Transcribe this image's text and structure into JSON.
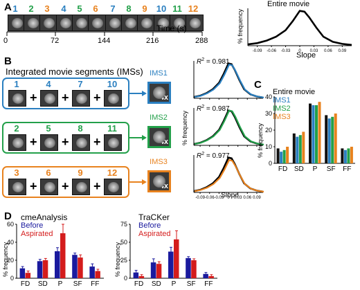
{
  "panel_a": {
    "label": "A",
    "segment_numbers": [
      "1",
      "2",
      "3",
      "4",
      "5",
      "6",
      "7",
      "8",
      "9",
      "10",
      "11",
      "12"
    ],
    "time_ticks": [
      "0",
      "72",
      "144",
      "216",
      "288"
    ],
    "time_label": "Time (s)",
    "inset_title": "Entire movie",
    "inset_ylabel": "% frequency",
    "inset_xlabel": "Slope",
    "inset_xticks": [
      "-0.09",
      "-0.06",
      "-0.03",
      "0",
      "0.03",
      "0.06",
      "0.09"
    ]
  },
  "panel_b": {
    "label": "B",
    "title": "Integrated movie segments (IMSs)",
    "plus": "+",
    "rows": [
      {
        "nums": [
          "1",
          "4",
          "7",
          "10"
        ],
        "ims": "IMS1",
        "r2": "0.981",
        "color": "#2a7fc0"
      },
      {
        "nums": [
          "2",
          "5",
          "8",
          "11"
        ],
        "ims": "IMS2",
        "r2": "0.987",
        "color": "#23a04a"
      },
      {
        "nums": [
          "3",
          "6",
          "9",
          "12"
        ],
        "ims": "IMS3",
        "r2": "0.977",
        "color": "#e8821e"
      }
    ],
    "fourx": "4x",
    "r2_label": "R",
    "hist_ylabel": "% frequency",
    "hist_xlabel": "Slope",
    "hist_xticks": [
      "-0.09",
      "-0.06",
      "-0.03",
      "0",
      "0.03",
      "0.06",
      "0.09"
    ]
  },
  "panel_c": {
    "label": "C",
    "legend": [
      "Entire movie",
      "IMS1",
      "IMS2",
      "IMS3"
    ],
    "ylabel": "% frequency",
    "yticks": [
      "0",
      "10",
      "20",
      "30",
      "40"
    ]
  },
  "panel_d": {
    "label": "D",
    "charts": [
      {
        "title": "cmeAnalysis",
        "legend": [
          "Before",
          "Aspirated"
        ],
        "ylabel": "% frequency",
        "yticks": [
          "0",
          "20",
          "40",
          "60"
        ]
      },
      {
        "title": "TraCKer",
        "legend": [
          "Before",
          "Aspirated"
        ],
        "ylabel": "% frequency",
        "yticks": [
          "0",
          "25",
          "50",
          "75"
        ]
      }
    ]
  },
  "chart_data": [
    {
      "type": "line",
      "panel": "A inset",
      "title": "Entire movie",
      "xlabel": "Slope",
      "ylabel": "% frequency",
      "xlim": [
        -0.11,
        0.11
      ],
      "x": [
        -0.11,
        -0.09,
        -0.07,
        -0.05,
        -0.03,
        -0.015,
        0,
        0.01,
        0.02,
        0.035,
        0.05,
        0.07,
        0.09,
        0.11
      ],
      "series": [
        {
          "values": [
            0.05,
            0.1,
            0.2,
            0.35,
            0.6,
            0.95,
            1.35,
            1.32,
            1.1,
            0.7,
            0.35,
            0.15,
            0.07,
            0.03
          ]
        }
      ]
    },
    {
      "type": "bar",
      "panel": "C",
      "categories": [
        "FD",
        "SD",
        "P",
        "SF",
        "FF"
      ],
      "ylabel": "% frequency",
      "ylim": [
        0,
        40
      ],
      "series": [
        {
          "name": "Entire movie",
          "values": [
            9,
            18,
            36,
            29,
            9
          ],
          "color": "#111111"
        },
        {
          "name": "IMS1",
          "values": [
            7,
            16,
            35,
            27,
            8
          ],
          "color": "#2a7fc0"
        },
        {
          "name": "IMS2",
          "values": [
            8,
            17,
            35,
            28,
            9
          ],
          "color": "#23a04a"
        },
        {
          "name": "IMS3",
          "values": [
            10,
            19,
            37,
            30,
            10
          ],
          "color": "#e8821e"
        }
      ]
    },
    {
      "type": "bar",
      "panel": "D",
      "title": "cmeAnalysis",
      "categories": [
        "FD",
        "SD",
        "P",
        "SF",
        "FF"
      ],
      "ylabel": "% frequency",
      "ylim": [
        0,
        60
      ],
      "series": [
        {
          "name": "Before",
          "values": [
            11,
            19,
            30,
            26,
            13
          ],
          "errors": [
            2,
            2,
            4,
            2,
            3
          ],
          "color": "#1a1a9e"
        },
        {
          "name": "Aspirated",
          "values": [
            6,
            20,
            50,
            23,
            8
          ],
          "errors": [
            2,
            2,
            10,
            3,
            2
          ],
          "color": "#d41c1c"
        }
      ]
    },
    {
      "type": "bar",
      "panel": "D",
      "title": "TraCKer",
      "categories": [
        "FD",
        "SD",
        "P",
        "SF",
        "FF"
      ],
      "ylabel": "% frequency",
      "ylim": [
        0,
        75
      ],
      "series": [
        {
          "name": "Before",
          "values": [
            8,
            22,
            37,
            28,
            6
          ],
          "errors": [
            3,
            5,
            6,
            2,
            2
          ],
          "color": "#1a1a9e"
        },
        {
          "name": "Aspirated",
          "values": [
            3,
            20,
            54,
            25,
            3
          ],
          "errors": [
            2,
            3,
            12,
            2,
            2
          ],
          "color": "#d41c1c"
        }
      ]
    }
  ]
}
